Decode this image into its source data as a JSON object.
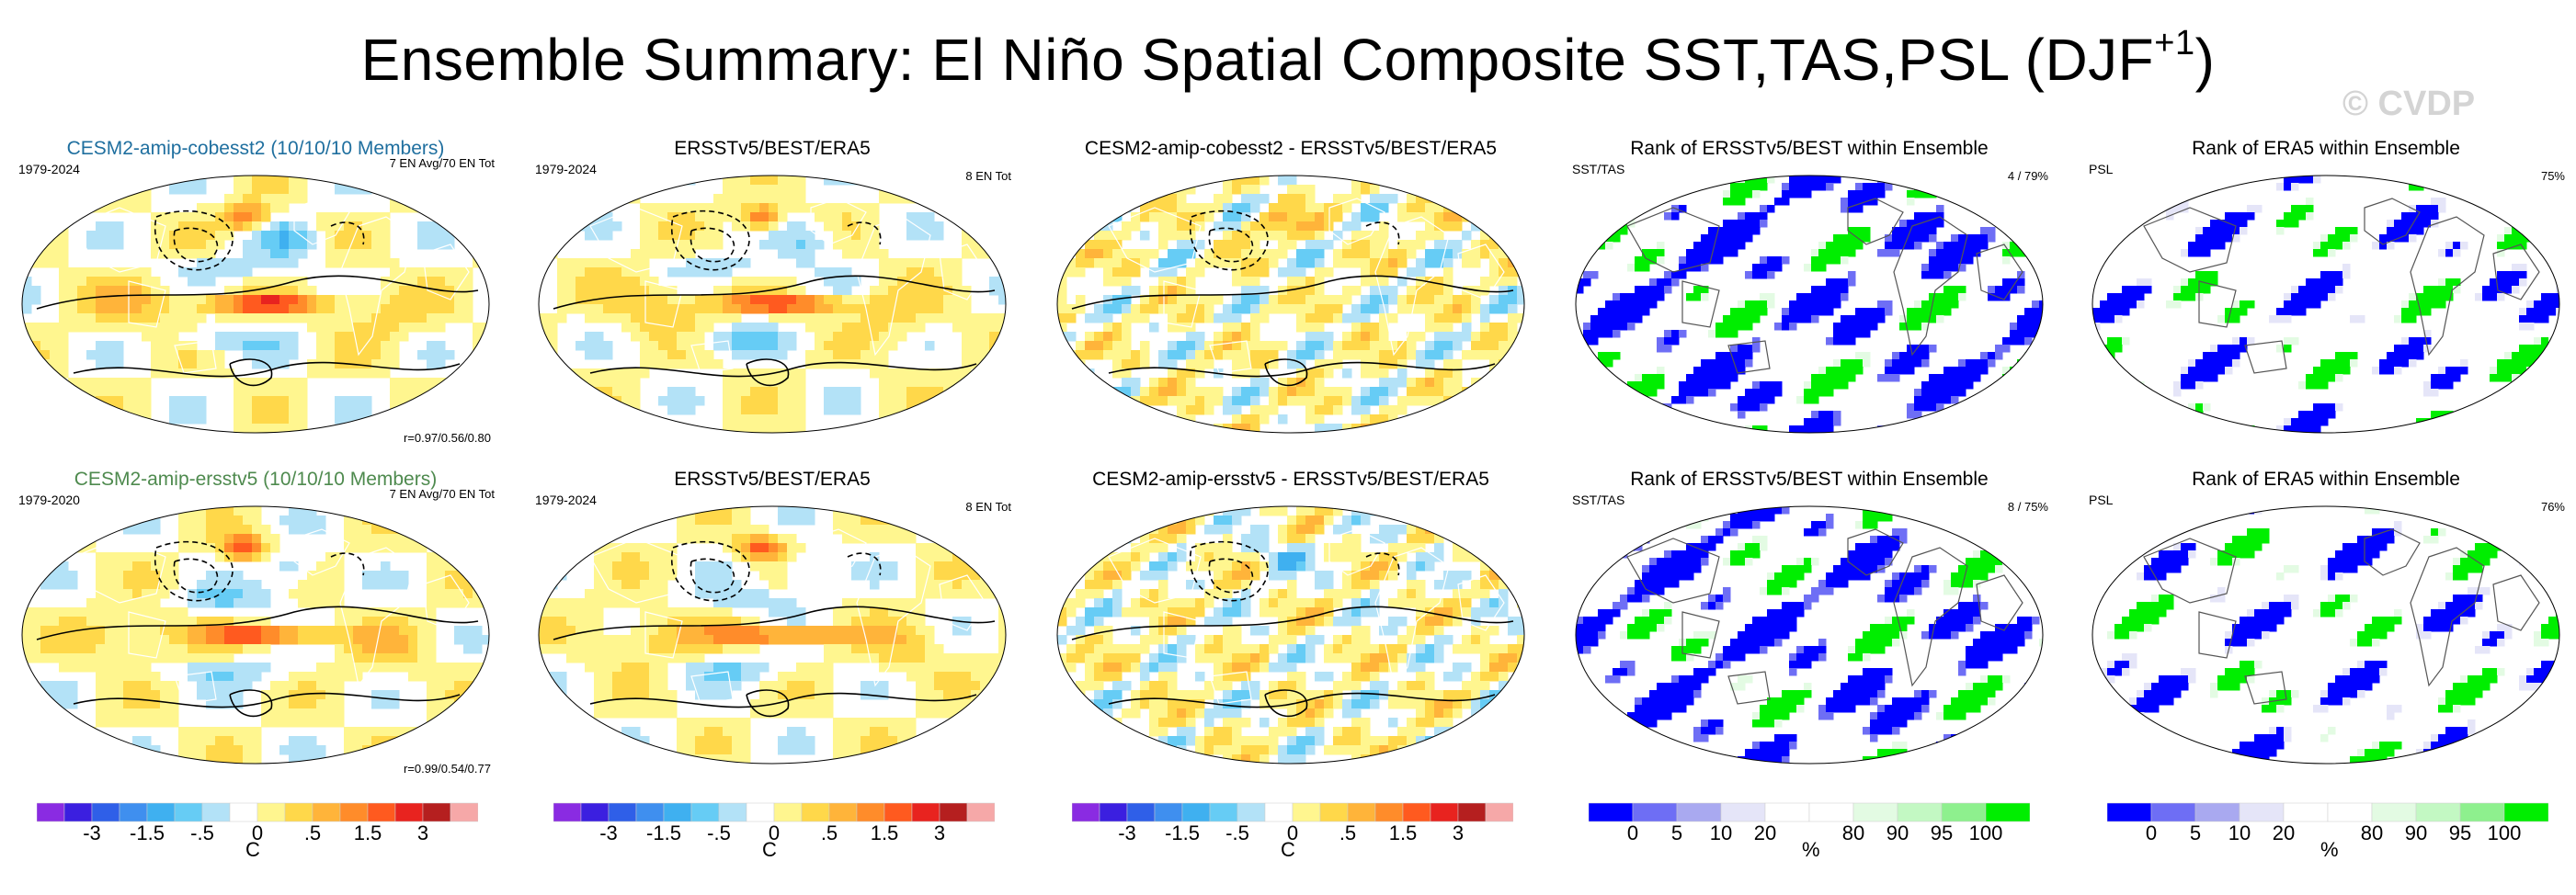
{
  "page": {
    "title": "Ensemble Summary: El Niño Spatial Composite SST,TAS,PSL (DJF",
    "title_sup": "+1",
    "title_close": ")",
    "watermark": "© CVDP"
  },
  "panels": [
    {
      "id": "r1c1",
      "title": "CESM2-amip-cobesst2 (10/10/10 Members)",
      "title_color": "#1f6f9f",
      "period": "1979-2024",
      "info": "7 EN Avg/70 EN Tot",
      "corr": "r=0.97/0.56/0.80",
      "kind": "anom",
      "seed": 1
    },
    {
      "id": "r1c2",
      "title": "ERSSTv5/BEST/ERA5",
      "title_color": "#000000",
      "period": "1979-2024",
      "info": "8 EN Tot",
      "corr": "",
      "kind": "anom",
      "seed": 2
    },
    {
      "id": "r1c3",
      "title": "CESM2-amip-cobesst2 - ERSSTv5/BEST/ERA5",
      "title_color": "#000000",
      "period": "",
      "info": "",
      "corr": "",
      "kind": "diff",
      "seed": 3
    },
    {
      "id": "r1c4",
      "title": "Rank of ERSSTv5/BEST within Ensemble",
      "title_color": "#000000",
      "period": "SST/TAS",
      "info": "4 /  79%",
      "corr": "",
      "kind": "rank",
      "seed": 4
    },
    {
      "id": "r1c5",
      "title": "Rank of ERA5 within Ensemble",
      "title_color": "#000000",
      "period": "PSL",
      "info": "75%",
      "corr": "",
      "kind": "rankpsl",
      "seed": 5
    },
    {
      "id": "r2c1",
      "title": "CESM2-amip-ersstv5 (10/10/10 Members)",
      "title_color": "#4e8a4e",
      "period": "1979-2020",
      "info": "7 EN Avg/70 EN Tot",
      "corr": "r=0.99/0.54/0.77",
      "kind": "anom",
      "seed": 6
    },
    {
      "id": "r2c2",
      "title": "ERSSTv5/BEST/ERA5",
      "title_color": "#000000",
      "period": "1979-2024",
      "info": "8 EN Tot",
      "corr": "",
      "kind": "anom",
      "seed": 7
    },
    {
      "id": "r2c3",
      "title": "CESM2-amip-ersstv5 - ERSSTv5/BEST/ERA5",
      "title_color": "#000000",
      "period": "",
      "info": "",
      "corr": "",
      "kind": "diff",
      "seed": 8
    },
    {
      "id": "r2c4",
      "title": "Rank of ERSSTv5/BEST within Ensemble",
      "title_color": "#000000",
      "period": "SST/TAS",
      "info": "8 /  75%",
      "corr": "",
      "kind": "rank",
      "seed": 9
    },
    {
      "id": "r2c5",
      "title": "Rank of ERA5 within Ensemble",
      "title_color": "#000000",
      "period": "PSL",
      "info": "76%",
      "corr": "",
      "kind": "rankpsl",
      "seed": 10
    }
  ],
  "colorbars": {
    "anom": {
      "colors": [
        "#8a2be2",
        "#3b1fe0",
        "#2f5fe8",
        "#3f8fef",
        "#3fb0f0",
        "#66ccf5",
        "#b3e2f7",
        "#ffffff",
        "#fff68f",
        "#ffd84a",
        "#ffb43a",
        "#ff8c2a",
        "#ff5a1f",
        "#e8231f",
        "#b51f1f",
        "#f6a8a8"
      ],
      "labels": [
        "-3",
        "-1.5",
        "-.5",
        "0",
        ".5",
        "1.5",
        "3"
      ],
      "label_bounds": [
        2,
        4,
        6,
        8,
        10,
        12,
        14
      ],
      "unit": "C"
    },
    "rank": {
      "colors": [
        "#0000ff",
        "#6e6ef5",
        "#a9a9f0",
        "#e5e5f8",
        "#ffffff",
        "#ffffff",
        "#e3fbe3",
        "#c3f8c3",
        "#8ef08e",
        "#00ee00"
      ],
      "labels": [
        "0",
        "5",
        "10",
        "20",
        "80",
        "90",
        "95",
        "100"
      ],
      "label_bounds": [
        1,
        2,
        3,
        4,
        6,
        7,
        8,
        9
      ],
      "unit": "%"
    }
  },
  "chart_data": {
    "type": "heatmap",
    "title": "Ensemble Summary: El Niño Spatial Composite SST,TAS,PSL (DJF+1)",
    "panels_layout": "2 rows x 5 columns of world-map composites",
    "anomaly_colorbar_ticks": [
      -3,
      -1.5,
      -0.5,
      0,
      0.5,
      1.5,
      3
    ],
    "anomaly_unit": "C",
    "rank_colorbar_ticks": [
      0,
      5,
      10,
      20,
      80,
      90,
      95,
      100
    ],
    "rank_unit": "%",
    "pattern_correlations": {
      "CESM2-amip-cobesst2": [
        0.97,
        0.56,
        0.8
      ],
      "CESM2-amip-ersstv5": [
        0.99,
        0.54,
        0.77
      ]
    },
    "rank_summary": {
      "row1": {
        "sst_tas_rank": 4,
        "sst_tas_pct": 79,
        "psl_pct": 75
      },
      "row2": {
        "sst_tas_rank": 8,
        "sst_tas_pct": 75,
        "psl_pct": 76
      }
    }
  }
}
